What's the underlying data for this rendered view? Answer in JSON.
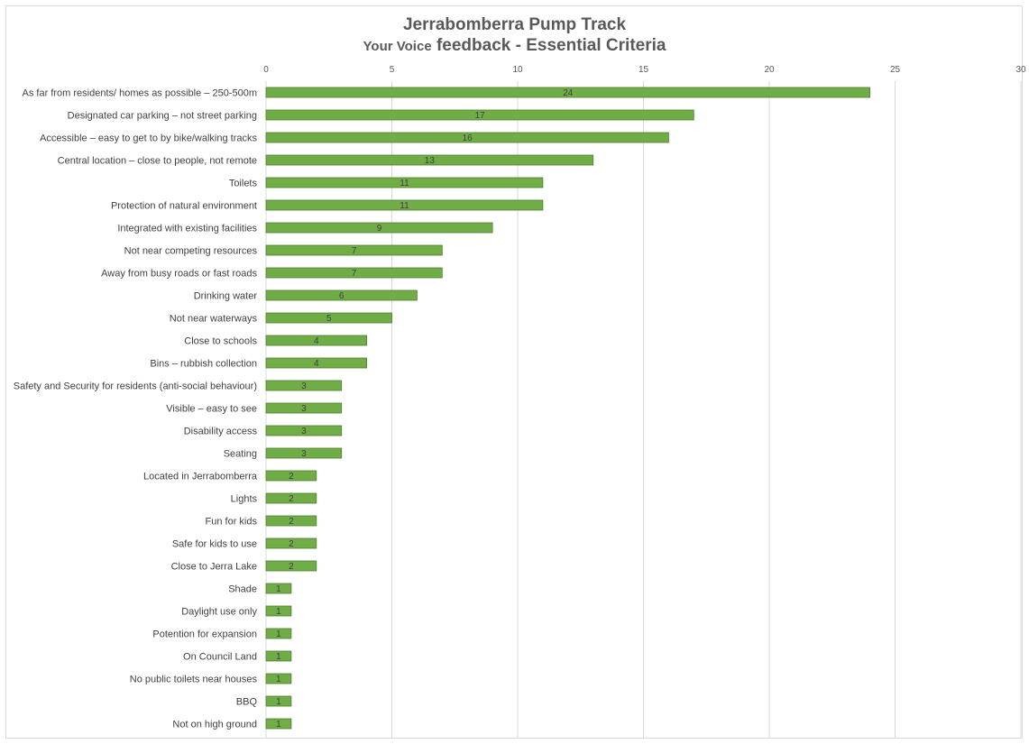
{
  "chart_data": {
    "type": "bar",
    "orientation": "horizontal",
    "title": "Jerrabomberra Pump Track",
    "subtitle_prefix": "Your Voice",
    "subtitle_main": "feedback - Essential Criteria",
    "xlim": [
      0,
      30
    ],
    "xticks": [
      0,
      5,
      10,
      15,
      20,
      25,
      30
    ],
    "xaxis_position": "top",
    "grid": true,
    "bar_color": "#70ad47",
    "categories": [
      "As far from residents/ homes as possible – 250-500m",
      "Designated car parking – not street parking",
      "Accessible – easy to get to by bike/walking tracks",
      "Central location – close to people, not remote",
      "Toilets",
      "Protection of natural environment",
      "Integrated with existing facilities",
      "Not near competing resources",
      "Away from busy roads or fast roads",
      "Drinking water",
      "Not near waterways",
      "Close to schools",
      "Bins – rubbish collection",
      "Safety and Security for residents (anti-social behaviour)",
      "Visible – easy to see",
      "Disability access",
      "Seating",
      "Located in Jerrabomberra",
      "Lights",
      "Fun for kids",
      "Safe for kids to use",
      "Close to Jerra Lake",
      "Shade",
      "Daylight use only",
      "Potention for expansion",
      "On Council Land",
      "No public toilets near houses",
      "BBQ",
      "Not on high ground"
    ],
    "values": [
      24,
      17,
      16,
      13,
      11,
      11,
      9,
      7,
      7,
      6,
      5,
      4,
      4,
      3,
      3,
      3,
      3,
      2,
      2,
      2,
      2,
      2,
      1,
      1,
      1,
      1,
      1,
      1,
      1
    ]
  }
}
